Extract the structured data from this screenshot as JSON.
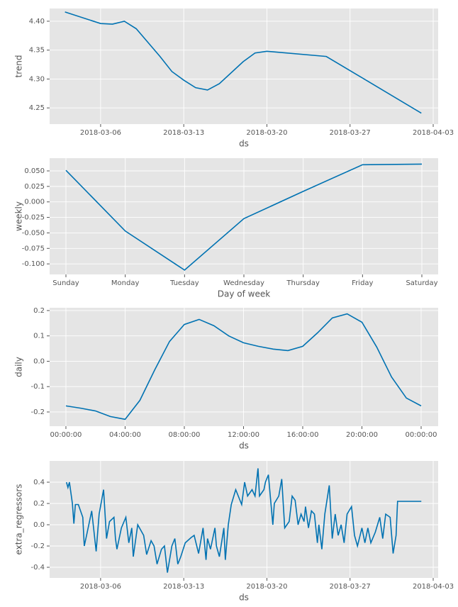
{
  "chart_data": [
    {
      "type": "line",
      "xlabel": "ds",
      "ylabel": "trend",
      "color": "#0072b2",
      "grid": true,
      "x": [
        "2018-03-03",
        "2018-03-06",
        "2018-03-07",
        "2018-03-08",
        "2018-03-09",
        "2018-03-11",
        "2018-03-12",
        "2018-03-13",
        "2018-03-14",
        "2018-03-15",
        "2018-03-16",
        "2018-03-18",
        "2018-03-19",
        "2018-03-20",
        "2018-03-25",
        "2018-04-02"
      ],
      "values": [
        4.416,
        4.396,
        4.395,
        4.4,
        4.387,
        4.339,
        4.313,
        4.298,
        4.285,
        4.281,
        4.292,
        4.33,
        4.345,
        4.348,
        4.339,
        4.241
      ],
      "xlim": [
        "2018-03-01 17:00",
        "2018-04-03 10:00"
      ],
      "xticks": [
        "2018-03-06",
        "2018-03-13",
        "2018-03-20",
        "2018-03-27",
        "2018-04-03"
      ],
      "ylim": [
        4.222,
        4.422
      ],
      "yticks": [
        4.25,
        {
          "value": 4.3,
          "label": "4.30"
        },
        4.35,
        {
          "value": 4.4,
          "label": "4.40"
        }
      ]
    },
    {
      "type": "line",
      "xlabel": "Day of week",
      "ylabel": "weekly",
      "color": "#0072b2",
      "grid": true,
      "categories": [
        "Sunday",
        "Monday",
        "Tuesday",
        "Wednesday",
        "Thursday",
        "Friday",
        "Saturday"
      ],
      "values": [
        0.051,
        -0.047,
        -0.11,
        -0.027,
        0.017,
        0.06,
        0.061
      ],
      "ylim": [
        -0.117,
        0.0706
      ],
      "yticks": [
        {
          "value": 0.05,
          "label": "0.050"
        },
        {
          "value": 0.025,
          "label": "0.025"
        },
        {
          "value": 0,
          "label": "0.000"
        },
        {
          "value": -0.025,
          "label": "-0.025"
        },
        {
          "value": -0.05,
          "label": "-0.050"
        },
        {
          "value": -0.075,
          "label": "-0.075"
        },
        {
          "value": -0.1,
          "label": "-0.100"
        }
      ]
    },
    {
      "type": "line",
      "xlabel": "ds",
      "ylabel": "daily",
      "color": "#0072b2",
      "grid": true,
      "x": [
        0,
        1,
        2,
        3,
        4,
        5,
        6,
        7,
        8,
        9,
        10,
        11,
        12,
        13,
        14,
        15,
        16,
        17,
        18,
        19,
        20,
        21,
        22,
        23,
        24
      ],
      "values": [
        -0.176,
        -0.185,
        -0.196,
        -0.218,
        -0.229,
        -0.154,
        -0.034,
        0.078,
        0.145,
        0.165,
        0.14,
        0.1,
        0.073,
        0.059,
        0.048,
        0.042,
        0.059,
        0.112,
        0.171,
        0.187,
        0.154,
        0.056,
        -0.062,
        -0.145,
        -0.176
      ],
      "xlim": [
        -1.1,
        25.15
      ],
      "xticks": [
        {
          "value": 0,
          "label": "00:00:00"
        },
        {
          "value": 4,
          "label": "04:00:00"
        },
        {
          "value": 8,
          "label": "08:00:00"
        },
        {
          "value": 12,
          "label": "12:00:00"
        },
        {
          "value": 16,
          "label": "16:00:00"
        },
        {
          "value": 20,
          "label": "20:00:00"
        },
        {
          "value": 24,
          "label": "00:00:00"
        }
      ],
      "ylim": [
        -0.256,
        0.211
      ],
      "yticks": [
        0.2,
        0.1,
        {
          "value": 0,
          "label": "0.0"
        },
        -0.1,
        -0.2
      ]
    },
    {
      "type": "line",
      "xlabel": "ds",
      "ylabel": "extra_regressors",
      "color": "#0072b2",
      "grid": true,
      "x": [
        "2018-03-03 03:00",
        "2018-03-03 06:00",
        "2018-03-03 09:00",
        "2018-03-03 15:00",
        "2018-03-03 18:00",
        "2018-03-03 21:00",
        "2018-03-04 03:00",
        "2018-03-04 12:00",
        "2018-03-04 15:00",
        "2018-03-04 21:00",
        "2018-03-05 06:00",
        "2018-03-05 15:00",
        "2018-03-05 21:00",
        "2018-03-06 06:00",
        "2018-03-06 12:00",
        "2018-03-06 18:00",
        "2018-03-07 03:00",
        "2018-03-07 06:00",
        "2018-03-07 09:00",
        "2018-03-07 18:00",
        "2018-03-08 03:00",
        "2018-03-08 09:00",
        "2018-03-08 15:00",
        "2018-03-08 18:00",
        "2018-03-09 03:00",
        "2018-03-09 15:00",
        "2018-03-09 21:00",
        "2018-03-10 06:00",
        "2018-03-10 12:00",
        "2018-03-10 18:00",
        "2018-03-11 03:00",
        "2018-03-11 09:00",
        "2018-03-11 15:00",
        "2018-03-12 00:00",
        "2018-03-12 06:00",
        "2018-03-12 12:00",
        "2018-03-12 18:00",
        "2018-03-13 03:00",
        "2018-03-13 15:00",
        "2018-03-13 21:00",
        "2018-03-14 06:00",
        "2018-03-14 15:00",
        "2018-03-14 21:00",
        "2018-03-15 00:00",
        "2018-03-15 06:00",
        "2018-03-15 15:00",
        "2018-03-15 18:00",
        "2018-03-16 00:00",
        "2018-03-16 09:00",
        "2018-03-16 12:00",
        "2018-03-16 18:00",
        "2018-03-17 00:00",
        "2018-03-17 09:00",
        "2018-03-17 21:00",
        "2018-03-18 03:00",
        "2018-03-18 09:00",
        "2018-03-18 18:00",
        "2018-03-19 00:00",
        "2018-03-19 06:00",
        "2018-03-19 09:00",
        "2018-03-19 18:00",
        "2018-03-19 21:00",
        "2018-03-20 03:00",
        "2018-03-20 12:00",
        "2018-03-20 15:00",
        "2018-03-21 00:00",
        "2018-03-21 06:00",
        "2018-03-21 12:00",
        "2018-03-21 21:00",
        "2018-03-22 03:00",
        "2018-03-22 09:00",
        "2018-03-22 15:00",
        "2018-03-22 21:00",
        "2018-03-23 03:00",
        "2018-03-23 06:00",
        "2018-03-23 12:00",
        "2018-03-23 18:00",
        "2018-03-24 00:00",
        "2018-03-24 06:00",
        "2018-03-24 09:00",
        "2018-03-24 15:00",
        "2018-03-24 21:00",
        "2018-03-25 06:00",
        "2018-03-25 12:00",
        "2018-03-25 18:00",
        "2018-03-26 00:00",
        "2018-03-26 06:00",
        "2018-03-26 12:00",
        "2018-03-26 18:00",
        "2018-03-27 03:00",
        "2018-03-27 09:00",
        "2018-03-27 15:00",
        "2018-03-28 00:00",
        "2018-03-28 06:00",
        "2018-03-28 12:00",
        "2018-03-28 18:00",
        "2018-03-29 03:00",
        "2018-03-29 12:00",
        "2018-03-29 18:00",
        "2018-03-30 00:00",
        "2018-03-30 09:00",
        "2018-03-30 15:00",
        "2018-03-30 21:00",
        "2018-03-31 00:00",
        "2018-04-02 00:00"
      ],
      "values": [
        0.4,
        0.35,
        0.4,
        0.2,
        0.01,
        0.19,
        0.19,
        0.07,
        -0.2,
        -0.07,
        0.13,
        -0.25,
        0.1,
        0.33,
        -0.13,
        0.03,
        0.07,
        -0.13,
        -0.23,
        -0.03,
        0.07,
        -0.17,
        -0.03,
        -0.3,
        0.0,
        -0.1,
        -0.28,
        -0.15,
        -0.2,
        -0.37,
        -0.23,
        -0.2,
        -0.45,
        -0.2,
        -0.13,
        -0.37,
        -0.3,
        -0.17,
        -0.12,
        -0.1,
        -0.27,
        -0.03,
        -0.33,
        -0.13,
        -0.23,
        -0.03,
        -0.2,
        -0.3,
        -0.03,
        -0.33,
        0.0,
        0.19,
        0.33,
        0.19,
        0.4,
        0.27,
        0.33,
        0.27,
        0.53,
        0.27,
        0.33,
        0.4,
        0.47,
        0.0,
        0.2,
        0.27,
        0.43,
        -0.03,
        0.03,
        0.27,
        0.23,
        0.0,
        0.1,
        0.03,
        0.17,
        -0.03,
        0.13,
        0.1,
        -0.17,
        0.0,
        -0.23,
        0.1,
        0.37,
        -0.13,
        0.1,
        -0.1,
        0.0,
        -0.17,
        0.1,
        0.17,
        -0.1,
        -0.2,
        -0.03,
        -0.17,
        -0.03,
        -0.17,
        -0.07,
        0.07,
        -0.13,
        0.1,
        0.07,
        -0.27,
        -0.1,
        0.22,
        0.22
      ],
      "xlim": [
        "2018-03-01 17:00",
        "2018-04-03 10:00"
      ],
      "xticks": [
        "2018-03-06",
        "2018-03-13",
        "2018-03-20",
        "2018-03-27",
        "2018-04-03"
      ],
      "ylim": [
        -0.5,
        0.6
      ],
      "yticks": [
        0.4,
        0.2,
        {
          "value": 0,
          "label": "0.0"
        },
        -0.2,
        -0.4
      ]
    }
  ]
}
